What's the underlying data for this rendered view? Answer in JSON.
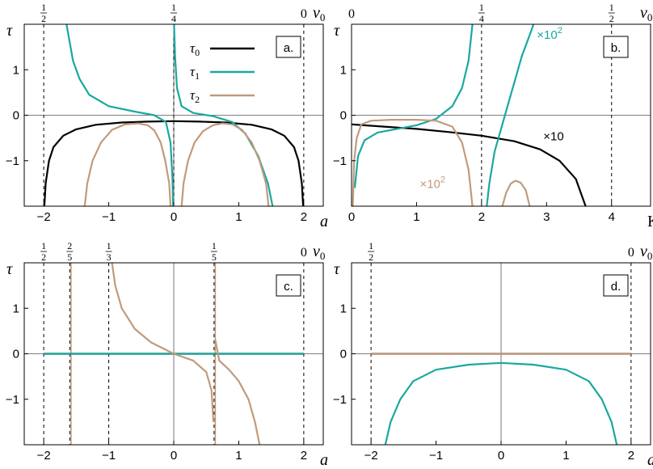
{
  "colors": {
    "tau0": "#000000",
    "tau1": "#1aa8a0",
    "tau2": "#c09b7c",
    "frame": "#000000"
  },
  "chart_data": [
    {
      "panel": "a.",
      "type": "line",
      "xlabel": "a",
      "ylabel": "τ",
      "top_axis_label": "ν0",
      "xlim": [
        -2.3,
        2.3
      ],
      "ylim": [
        -2,
        2
      ],
      "xticks": [
        {
          "value": -2,
          "label": "−2"
        },
        {
          "value": -1,
          "label": "−1"
        },
        {
          "value": 0,
          "label": "0"
        },
        {
          "value": 1,
          "label": "1"
        },
        {
          "value": 2,
          "label": "2"
        }
      ],
      "yticks": [
        {
          "value": 1,
          "label": "1"
        },
        {
          "value": 0,
          "label": "0"
        },
        {
          "value": -1,
          "label": "−1"
        }
      ],
      "top_ticks": [
        {
          "x": -2,
          "num": "1",
          "den": "2"
        },
        {
          "x": 0,
          "num": "1",
          "den": "4"
        },
        {
          "x": 2,
          "text": "0"
        }
      ],
      "vlines": [
        -2,
        0,
        2
      ],
      "legend": [
        {
          "sym": "τ",
          "sub": "0",
          "color": "#000000"
        },
        {
          "sym": "τ",
          "sub": "1",
          "color": "#1aa8a0"
        },
        {
          "sym": "τ",
          "sub": "2",
          "color": "#c09b7c"
        }
      ],
      "annotations": [],
      "series": [
        {
          "color": "#000000",
          "points": [
            [
              -1.99,
              -2.0
            ],
            [
              -1.97,
              -1.5
            ],
            [
              -1.92,
              -1.0
            ],
            [
              -1.85,
              -0.7
            ],
            [
              -1.7,
              -0.45
            ],
            [
              -1.5,
              -0.31
            ],
            [
              -1.2,
              -0.21
            ],
            [
              -0.8,
              -0.16
            ],
            [
              -0.4,
              -0.14
            ],
            [
              0,
              -0.13
            ],
            [
              0.4,
              -0.14
            ],
            [
              0.8,
              -0.16
            ],
            [
              1.2,
              -0.21
            ],
            [
              1.5,
              -0.31
            ],
            [
              1.7,
              -0.45
            ],
            [
              1.85,
              -0.7
            ],
            [
              1.92,
              -1.0
            ],
            [
              1.97,
              -1.5
            ],
            [
              1.99,
              -2.0
            ]
          ]
        },
        {
          "color": "#1aa8a0",
          "points": [
            [
              -1.65,
              2.0
            ],
            [
              -1.6,
              1.6
            ],
            [
              -1.55,
              1.2
            ],
            [
              -1.45,
              0.8
            ],
            [
              -1.3,
              0.45
            ],
            [
              -1.0,
              0.2
            ],
            [
              -0.6,
              0.08
            ],
            [
              -0.3,
              0.0
            ],
            [
              -0.12,
              -0.15
            ],
            [
              -0.05,
              -0.6
            ],
            [
              -0.02,
              -1.4
            ],
            [
              -0.01,
              -2.0
            ]
          ]
        },
        {
          "color": "#1aa8a0",
          "points": [
            [
              0.005,
              2.0
            ],
            [
              0.02,
              1.3
            ],
            [
              0.05,
              0.6
            ],
            [
              0.12,
              0.2
            ],
            [
              0.3,
              0.05
            ],
            [
              0.6,
              -0.02
            ],
            [
              0.9,
              -0.15
            ],
            [
              1.1,
              -0.4
            ],
            [
              1.3,
              -0.9
            ],
            [
              1.45,
              -1.5
            ],
            [
              1.52,
              -2.0
            ]
          ]
        },
        {
          "color": "#c09b7c",
          "points": [
            [
              -1.37,
              -2.0
            ],
            [
              -1.33,
              -1.5
            ],
            [
              -1.25,
              -1.0
            ],
            [
              -1.12,
              -0.6
            ],
            [
              -0.95,
              -0.32
            ],
            [
              -0.75,
              -0.2
            ],
            [
              -0.55,
              -0.18
            ],
            [
              -0.4,
              -0.22
            ],
            [
              -0.3,
              -0.33
            ],
            [
              -0.2,
              -0.6
            ],
            [
              -0.13,
              -1.0
            ],
            [
              -0.07,
              -1.5
            ],
            [
              -0.05,
              -2.0
            ]
          ]
        },
        {
          "color": "#c09b7c",
          "points": [
            [
              0.12,
              -2.0
            ],
            [
              0.15,
              -1.5
            ],
            [
              0.22,
              -1.0
            ],
            [
              0.32,
              -0.6
            ],
            [
              0.45,
              -0.35
            ],
            [
              0.6,
              -0.22
            ],
            [
              0.75,
              -0.18
            ],
            [
              0.9,
              -0.2
            ],
            [
              1.05,
              -0.32
            ],
            [
              1.2,
              -0.6
            ],
            [
              1.32,
              -1.0
            ],
            [
              1.42,
              -1.5
            ],
            [
              1.46,
              -2.0
            ]
          ]
        }
      ]
    },
    {
      "panel": "b.",
      "type": "line",
      "xlabel": "K",
      "ylabel": "τ",
      "top_axis_label": "ν0",
      "xlim": [
        0,
        4.6
      ],
      "ylim": [
        -2,
        2
      ],
      "xticks": [
        {
          "value": 0,
          "label": "0"
        },
        {
          "value": 1,
          "label": "1"
        },
        {
          "value": 2,
          "label": "2"
        },
        {
          "value": 3,
          "label": "3"
        },
        {
          "value": 4,
          "label": "4"
        }
      ],
      "yticks": [
        {
          "value": 1,
          "label": "1"
        },
        {
          "value": 0,
          "label": "0"
        },
        {
          "value": -1,
          "label": "−1"
        }
      ],
      "top_ticks": [
        {
          "x": 0,
          "text": "0"
        },
        {
          "x": 2,
          "num": "1",
          "den": "4"
        },
        {
          "x": 4,
          "num": "1",
          "den": "2"
        }
      ],
      "vlines": [
        0,
        2,
        4
      ],
      "legend": [],
      "annotations": [
        {
          "text": "×10",
          "sup": "2",
          "color": "#1aa8a0",
          "x": 2.85,
          "y": 1.68
        },
        {
          "text": "×10",
          "sup": "",
          "color": "#000000",
          "x": 2.95,
          "y": -0.55
        },
        {
          "text": "×10",
          "sup": "2",
          "color": "#c09b7c",
          "x": 1.05,
          "y": -1.6
        }
      ],
      "series": [
        {
          "color": "#000000",
          "points": [
            [
              0,
              -0.2
            ],
            [
              0.5,
              -0.25
            ],
            [
              1.0,
              -0.3
            ],
            [
              1.5,
              -0.37
            ],
            [
              2.0,
              -0.45
            ],
            [
              2.5,
              -0.57
            ],
            [
              2.9,
              -0.75
            ],
            [
              3.2,
              -1.0
            ],
            [
              3.45,
              -1.4
            ],
            [
              3.6,
              -2.0
            ]
          ]
        },
        {
          "color": "#1aa8a0",
          "points": [
            [
              0.05,
              -1.6
            ],
            [
              0.1,
              -0.9
            ],
            [
              0.2,
              -0.55
            ],
            [
              0.4,
              -0.38
            ],
            [
              0.7,
              -0.3
            ],
            [
              1.0,
              -0.22
            ],
            [
              1.3,
              -0.08
            ],
            [
              1.55,
              0.2
            ],
            [
              1.7,
              0.6
            ],
            [
              1.8,
              1.2
            ],
            [
              1.86,
              2.0
            ]
          ]
        },
        {
          "color": "#1aa8a0",
          "points": [
            [
              2.08,
              -2.0
            ],
            [
              2.12,
              -1.5
            ],
            [
              2.2,
              -0.8
            ],
            [
              2.3,
              -0.3
            ],
            [
              2.4,
              0.2
            ],
            [
              2.5,
              0.7
            ],
            [
              2.62,
              1.3
            ],
            [
              2.75,
              1.8
            ],
            [
              2.8,
              2.0
            ]
          ]
        },
        {
          "color": "#c09b7c",
          "points": [
            [
              0.02,
              -2.0
            ],
            [
              0.04,
              -1.0
            ],
            [
              0.08,
              -0.5
            ],
            [
              0.15,
              -0.2
            ],
            [
              0.3,
              -0.12
            ],
            [
              0.6,
              -0.1
            ],
            [
              1.0,
              -0.1
            ],
            [
              1.3,
              -0.12
            ],
            [
              1.55,
              -0.25
            ],
            [
              1.7,
              -0.6
            ],
            [
              1.8,
              -1.2
            ],
            [
              1.86,
              -2.0
            ]
          ]
        },
        {
          "color": "#c09b7c",
          "points": [
            [
              2.32,
              -2.0
            ],
            [
              2.38,
              -1.7
            ],
            [
              2.45,
              -1.5
            ],
            [
              2.52,
              -1.44
            ],
            [
              2.6,
              -1.48
            ],
            [
              2.68,
              -1.65
            ],
            [
              2.74,
              -2.0
            ]
          ]
        }
      ]
    },
    {
      "panel": "c.",
      "type": "line",
      "xlabel": "a",
      "ylabel": "τ",
      "top_axis_label": "ν0",
      "xlim": [
        -2.3,
        2.3
      ],
      "ylim": [
        -2,
        2
      ],
      "xticks": [
        {
          "value": -2,
          "label": "−2"
        },
        {
          "value": -1,
          "label": "−1"
        },
        {
          "value": 0,
          "label": "0"
        },
        {
          "value": 1,
          "label": "1"
        },
        {
          "value": 2,
          "label": "2"
        }
      ],
      "yticks": [
        {
          "value": 1,
          "label": "1"
        },
        {
          "value": 0,
          "label": "0"
        },
        {
          "value": -1,
          "label": "−1"
        }
      ],
      "top_ticks": [
        {
          "x": -2,
          "num": "1",
          "den": "2"
        },
        {
          "x": -1.6,
          "num": "2",
          "den": "5"
        },
        {
          "x": -1,
          "num": "1",
          "den": "3"
        },
        {
          "x": 0.62,
          "num": "1",
          "den": "5"
        },
        {
          "x": 2,
          "text": "0"
        }
      ],
      "vlines": [
        -2,
        -1.6,
        -1,
        0.62,
        2
      ],
      "colored_vlines": [
        {
          "x": -1.6,
          "color": "#c09b7c"
        },
        {
          "x": 0.62,
          "color": "#c09b7c"
        }
      ],
      "legend": [],
      "annotations": [],
      "series": [
        {
          "color": "#000000",
          "points": [
            [
              -2,
              0
            ],
            [
              2,
              0
            ]
          ]
        },
        {
          "color": "#1aa8a0",
          "points": [
            [
              -2,
              0
            ],
            [
              2,
              0
            ]
          ]
        },
        {
          "color": "#c09b7c",
          "points": [
            [
              -0.95,
              2.0
            ],
            [
              -0.9,
              1.5
            ],
            [
              -0.8,
              1.0
            ],
            [
              -0.6,
              0.55
            ],
            [
              -0.35,
              0.25
            ],
            [
              0,
              0.0
            ],
            [
              0.3,
              -0.15
            ],
            [
              0.5,
              -0.4
            ],
            [
              0.58,
              -0.8
            ],
            [
              0.61,
              -1.5
            ]
          ]
        },
        {
          "color": "#c09b7c",
          "points": [
            [
              0.64,
              0.3
            ],
            [
              0.7,
              -0.15
            ],
            [
              0.85,
              -0.35
            ],
            [
              1.0,
              -0.6
            ],
            [
              1.15,
              -1.0
            ],
            [
              1.25,
              -1.5
            ],
            [
              1.32,
              -2.0
            ]
          ]
        }
      ]
    },
    {
      "panel": "d.",
      "type": "line",
      "xlabel": "a",
      "ylabel": "τ",
      "top_axis_label": "ν0",
      "xlim": [
        -2.3,
        2.3
      ],
      "ylim": [
        -2,
        2
      ],
      "xticks": [
        {
          "value": -2,
          "label": "−2"
        },
        {
          "value": -1,
          "label": "−1"
        },
        {
          "value": 0,
          "label": "0"
        },
        {
          "value": 1,
          "label": "1"
        },
        {
          "value": 2,
          "label": "2"
        }
      ],
      "yticks": [
        {
          "value": 1,
          "label": "1"
        },
        {
          "value": 0,
          "label": "0"
        },
        {
          "value": -1,
          "label": "−1"
        }
      ],
      "top_ticks": [
        {
          "x": -2,
          "num": "1",
          "den": "2"
        },
        {
          "x": 2,
          "text": "0"
        }
      ],
      "vlines": [
        -2,
        2
      ],
      "legend": [],
      "annotations": [],
      "series": [
        {
          "color": "#000000",
          "points": [
            [
              -2,
              0
            ],
            [
              2,
              0
            ]
          ]
        },
        {
          "color": "#c09b7c",
          "points": [
            [
              -2,
              0
            ],
            [
              2,
              0
            ]
          ]
        },
        {
          "color": "#1aa8a0",
          "points": [
            [
              -1.78,
              -2.0
            ],
            [
              -1.7,
              -1.5
            ],
            [
              -1.55,
              -1.0
            ],
            [
              -1.35,
              -0.6
            ],
            [
              -1.0,
              -0.35
            ],
            [
              -0.5,
              -0.24
            ],
            [
              0,
              -0.2
            ],
            [
              0.5,
              -0.24
            ],
            [
              1.0,
              -0.35
            ],
            [
              1.35,
              -0.6
            ],
            [
              1.55,
              -1.0
            ],
            [
              1.7,
              -1.5
            ],
            [
              1.78,
              -2.0
            ]
          ]
        }
      ]
    }
  ]
}
